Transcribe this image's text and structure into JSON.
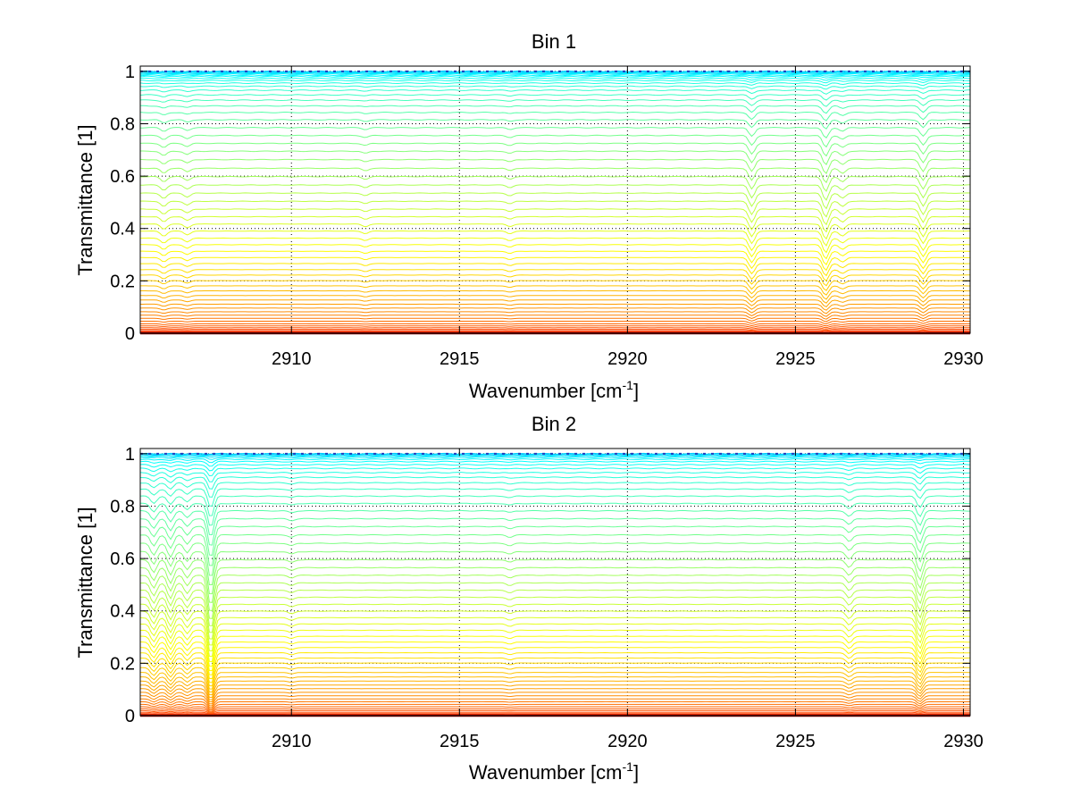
{
  "figure": {
    "background": "#ffffff"
  },
  "chart_data": [
    {
      "type": "line",
      "title": "Bin 1",
      "xlabel_main": "Wavenumber [cm",
      "xlabel_sup": "-1",
      "xlabel_close": "]",
      "ylabel": "Transmittance [1]",
      "xlim": [
        2905.5,
        2930.2
      ],
      "ylim": [
        0,
        1.02
      ],
      "xticks": [
        2910,
        2915,
        2920,
        2925,
        2930
      ],
      "xtick_labels": [
        "2910",
        "2915",
        "2920",
        "2925",
        "2930"
      ],
      "yticks": [
        0,
        0.2,
        0.4,
        0.6,
        0.8,
        1
      ],
      "ytick_labels": [
        "0",
        "0.2",
        "0.4",
        "0.6",
        "0.8",
        "1"
      ],
      "grid": true,
      "colormap": "jet",
      "series_count": 60,
      "series_baselines": [
        1.0,
        0.998,
        0.996,
        0.993,
        0.99,
        0.985,
        0.98,
        0.973,
        0.965,
        0.955,
        0.943,
        0.928,
        0.91,
        0.89,
        0.868,
        0.843,
        0.815,
        0.785,
        0.755,
        0.725,
        0.695,
        0.663,
        0.63,
        0.598,
        0.566,
        0.535,
        0.504,
        0.474,
        0.445,
        0.417,
        0.39,
        0.363,
        0.338,
        0.313,
        0.289,
        0.266,
        0.243,
        0.222,
        0.201,
        0.181,
        0.162,
        0.144,
        0.127,
        0.111,
        0.096,
        0.082,
        0.069,
        0.057,
        0.046,
        0.036,
        0.028,
        0.021,
        0.015,
        0.01,
        0.006,
        0.004,
        0.002,
        0.001,
        0.0005,
        0.0
      ],
      "absorption_lines": [
        {
          "x": 2906.2,
          "depth": 0.02
        },
        {
          "x": 2906.9,
          "depth": 0.015
        },
        {
          "x": 2912.2,
          "depth": 0.01
        },
        {
          "x": 2916.5,
          "depth": 0.01
        },
        {
          "x": 2923.7,
          "depth": 0.05
        },
        {
          "x": 2925.9,
          "depth": 0.06
        },
        {
          "x": 2926.4,
          "depth": 0.02
        },
        {
          "x": 2928.8,
          "depth": 0.05
        }
      ]
    },
    {
      "type": "line",
      "title": "Bin 2",
      "xlabel_main": "Wavenumber [cm",
      "xlabel_sup": "-1",
      "xlabel_close": "]",
      "ylabel": "Transmittance [1]",
      "xlim": [
        2905.5,
        2930.2
      ],
      "ylim": [
        0,
        1.02
      ],
      "xticks": [
        2910,
        2915,
        2920,
        2925,
        2930
      ],
      "xtick_labels": [
        "2910",
        "2915",
        "2920",
        "2925",
        "2930"
      ],
      "yticks": [
        0,
        0.2,
        0.4,
        0.6,
        0.8,
        1
      ],
      "ytick_labels": [
        "0",
        "0.2",
        "0.4",
        "0.6",
        "0.8",
        "1"
      ],
      "grid": true,
      "colormap": "jet",
      "series_count": 60,
      "series_baselines": [
        1.0,
        0.998,
        0.995,
        0.991,
        0.986,
        0.979,
        0.97,
        0.958,
        0.944,
        0.928,
        0.91,
        0.889,
        0.865,
        0.838,
        0.81,
        0.782,
        0.752,
        0.722,
        0.69,
        0.658,
        0.626,
        0.595,
        0.565,
        0.536,
        0.507,
        0.479,
        0.452,
        0.425,
        0.399,
        0.374,
        0.35,
        0.326,
        0.303,
        0.281,
        0.26,
        0.24,
        0.22,
        0.201,
        0.183,
        0.165,
        0.148,
        0.132,
        0.117,
        0.103,
        0.089,
        0.076,
        0.064,
        0.053,
        0.043,
        0.034,
        0.026,
        0.019,
        0.013,
        0.008,
        0.005,
        0.003,
        0.0015,
        0.0007,
        0.0002,
        0.0
      ],
      "absorption_lines": [
        {
          "x": 2905.9,
          "depth": 0.05
        },
        {
          "x": 2906.4,
          "depth": 0.06
        },
        {
          "x": 2906.9,
          "depth": 0.04
        },
        {
          "x": 2907.6,
          "depth": 0.15
        },
        {
          "x": 2910.0,
          "depth": 0.01
        },
        {
          "x": 2916.5,
          "depth": 0.01
        },
        {
          "x": 2926.6,
          "depth": 0.03
        },
        {
          "x": 2928.7,
          "depth": 0.08
        }
      ]
    }
  ]
}
